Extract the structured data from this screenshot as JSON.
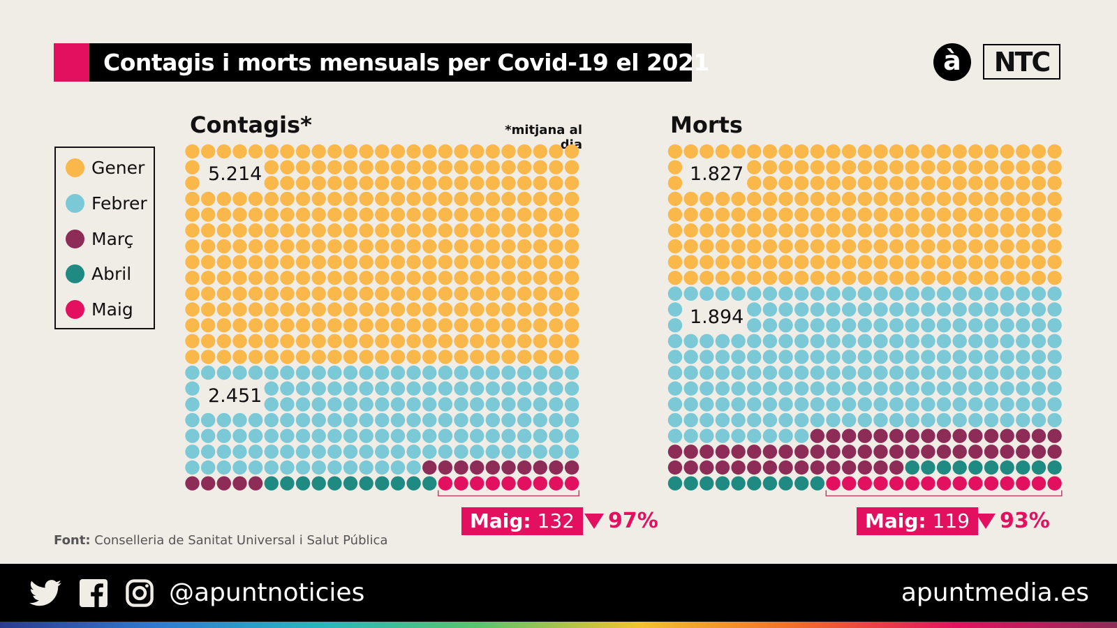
{
  "title": "Contagis i morts mensuals per Covid-19 el 2021",
  "logos": {
    "a": "à",
    "ntc": "NTC"
  },
  "legend": [
    {
      "label": "Gener",
      "color": "#fbb84a"
    },
    {
      "label": "Febrer",
      "color": "#7bc9d6"
    },
    {
      "label": "Març",
      "color": "#8e2c58"
    },
    {
      "label": "Abril",
      "color": "#1f8a82"
    },
    {
      "label": "Maig",
      "color": "#e3105f"
    }
  ],
  "chart_data": [
    {
      "type": "waffle",
      "title": "Contagis*",
      "note": "*mitjana al dia",
      "categories": [
        "Gener",
        "Febrer",
        "Març",
        "Abril",
        "Maig"
      ],
      "values": [
        5214,
        2451,
        null,
        null,
        132
      ],
      "value_labels": [
        "5.214",
        "2.451",
        "",
        "",
        "132"
      ],
      "dots": [
        350,
        165,
        15,
        11,
        9
      ],
      "grid": {
        "columns": 25,
        "rows": 22
      },
      "callout": {
        "label": "Maig:",
        "value": "132",
        "change": "97%",
        "direction": "down"
      }
    },
    {
      "type": "waffle",
      "title": "Morts",
      "categories": [
        "Gener",
        "Febrer",
        "Març",
        "Abril",
        "Maig"
      ],
      "values": [
        1827,
        1894,
        null,
        null,
        119
      ],
      "value_labels": [
        "1.827",
        "1.894",
        "",
        "",
        "119"
      ],
      "dots": [
        225,
        234,
        56,
        20,
        15
      ],
      "grid": {
        "columns": 25,
        "rows": 22
      },
      "callout": {
        "label": "Maig:",
        "value": "119",
        "change": "93%",
        "direction": "down"
      }
    }
  ],
  "source": {
    "label": "Font:",
    "text": "Conselleria de Sanitat Universal i Salut Pública"
  },
  "footer": {
    "handle": "@apuntnoticies",
    "site": "apuntmedia.es",
    "icons": [
      "twitter-icon",
      "facebook-icon",
      "instagram-icon"
    ]
  }
}
